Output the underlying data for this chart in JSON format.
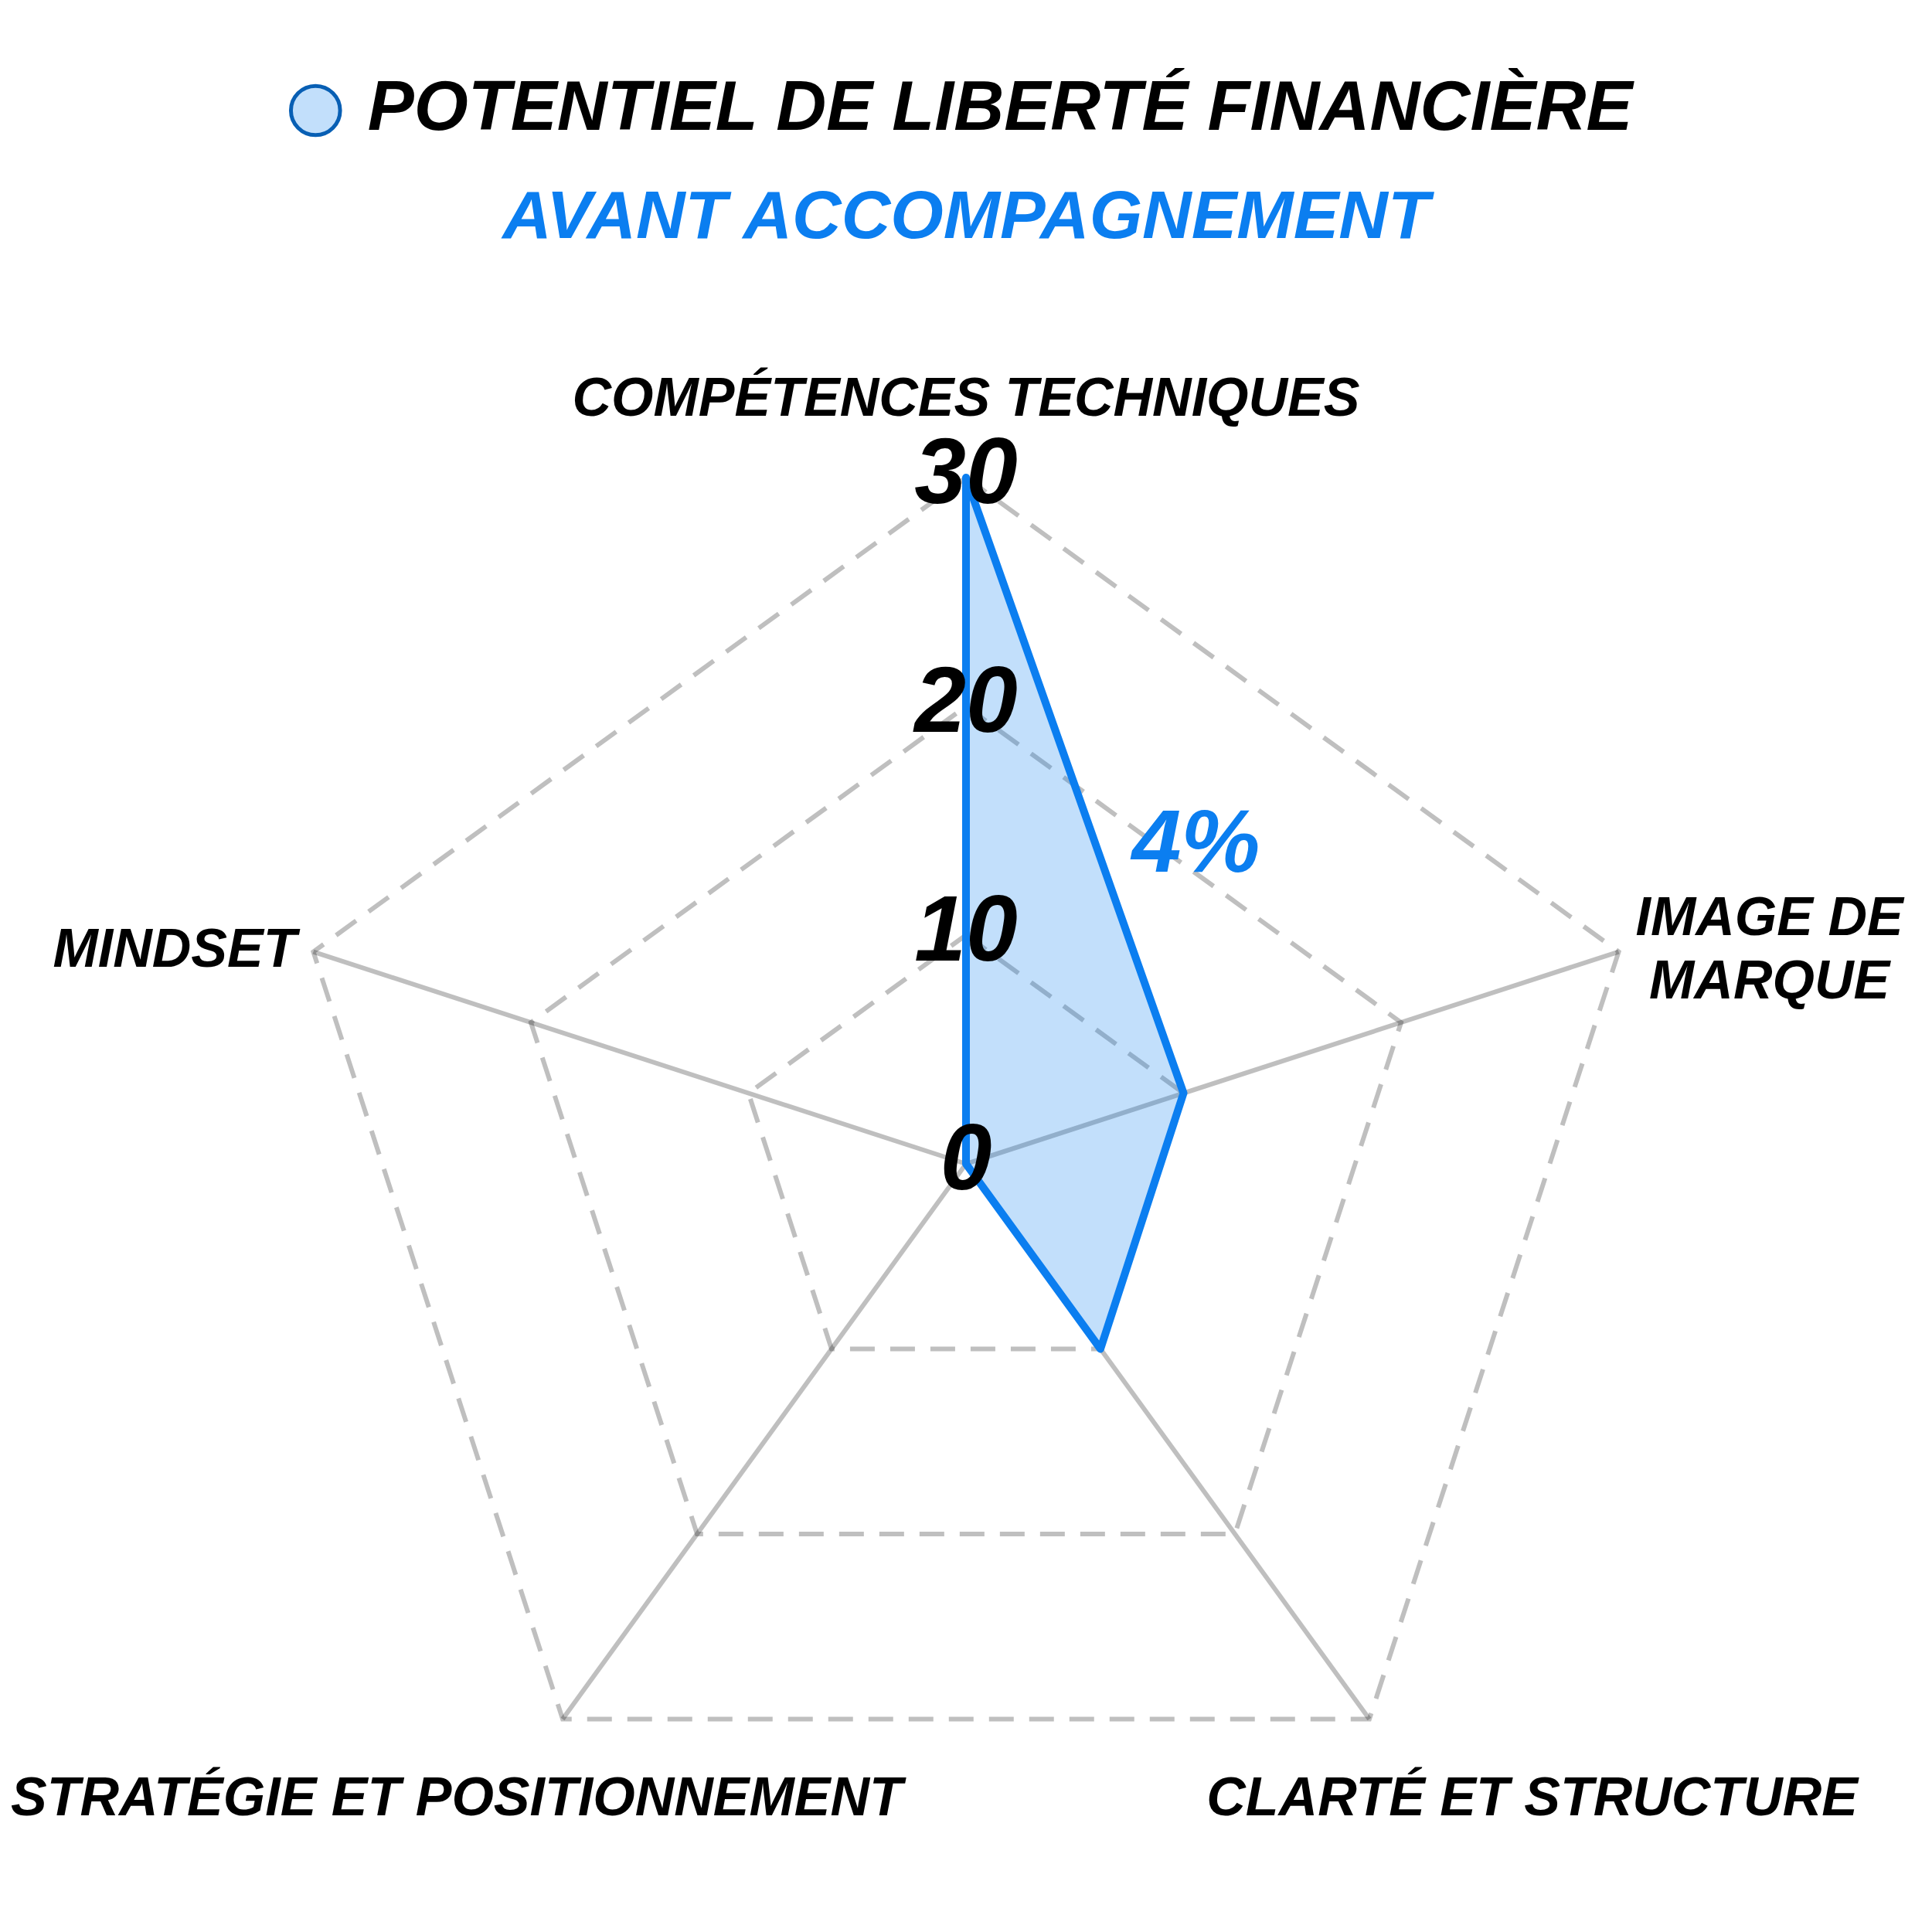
{
  "chart_data": {
    "type": "radar",
    "subtitle": "AVANT ACCOMPAGNEMENT",
    "categories": [
      "COMPÉTENCES TECHNIQUES",
      "IMAGE DE MARQUE",
      "CLARTÉ ET STRUCTURE",
      "STRATÉGIE ET POSITIONNEMENT",
      "MINDSET"
    ],
    "series": [
      {
        "name": "POTENTIEL DE LIBERTÉ FINANCIÈRE",
        "color": "#0b7ef0",
        "values": [
          30,
          10,
          10,
          0,
          0
        ]
      }
    ],
    "ylim": [
      0,
      30
    ],
    "yticks": [
      0,
      10,
      20,
      30
    ],
    "annotations": [
      "4%"
    ],
    "grid": true,
    "legend": "top",
    "marker": "none",
    "line_style": "solid"
  }
}
